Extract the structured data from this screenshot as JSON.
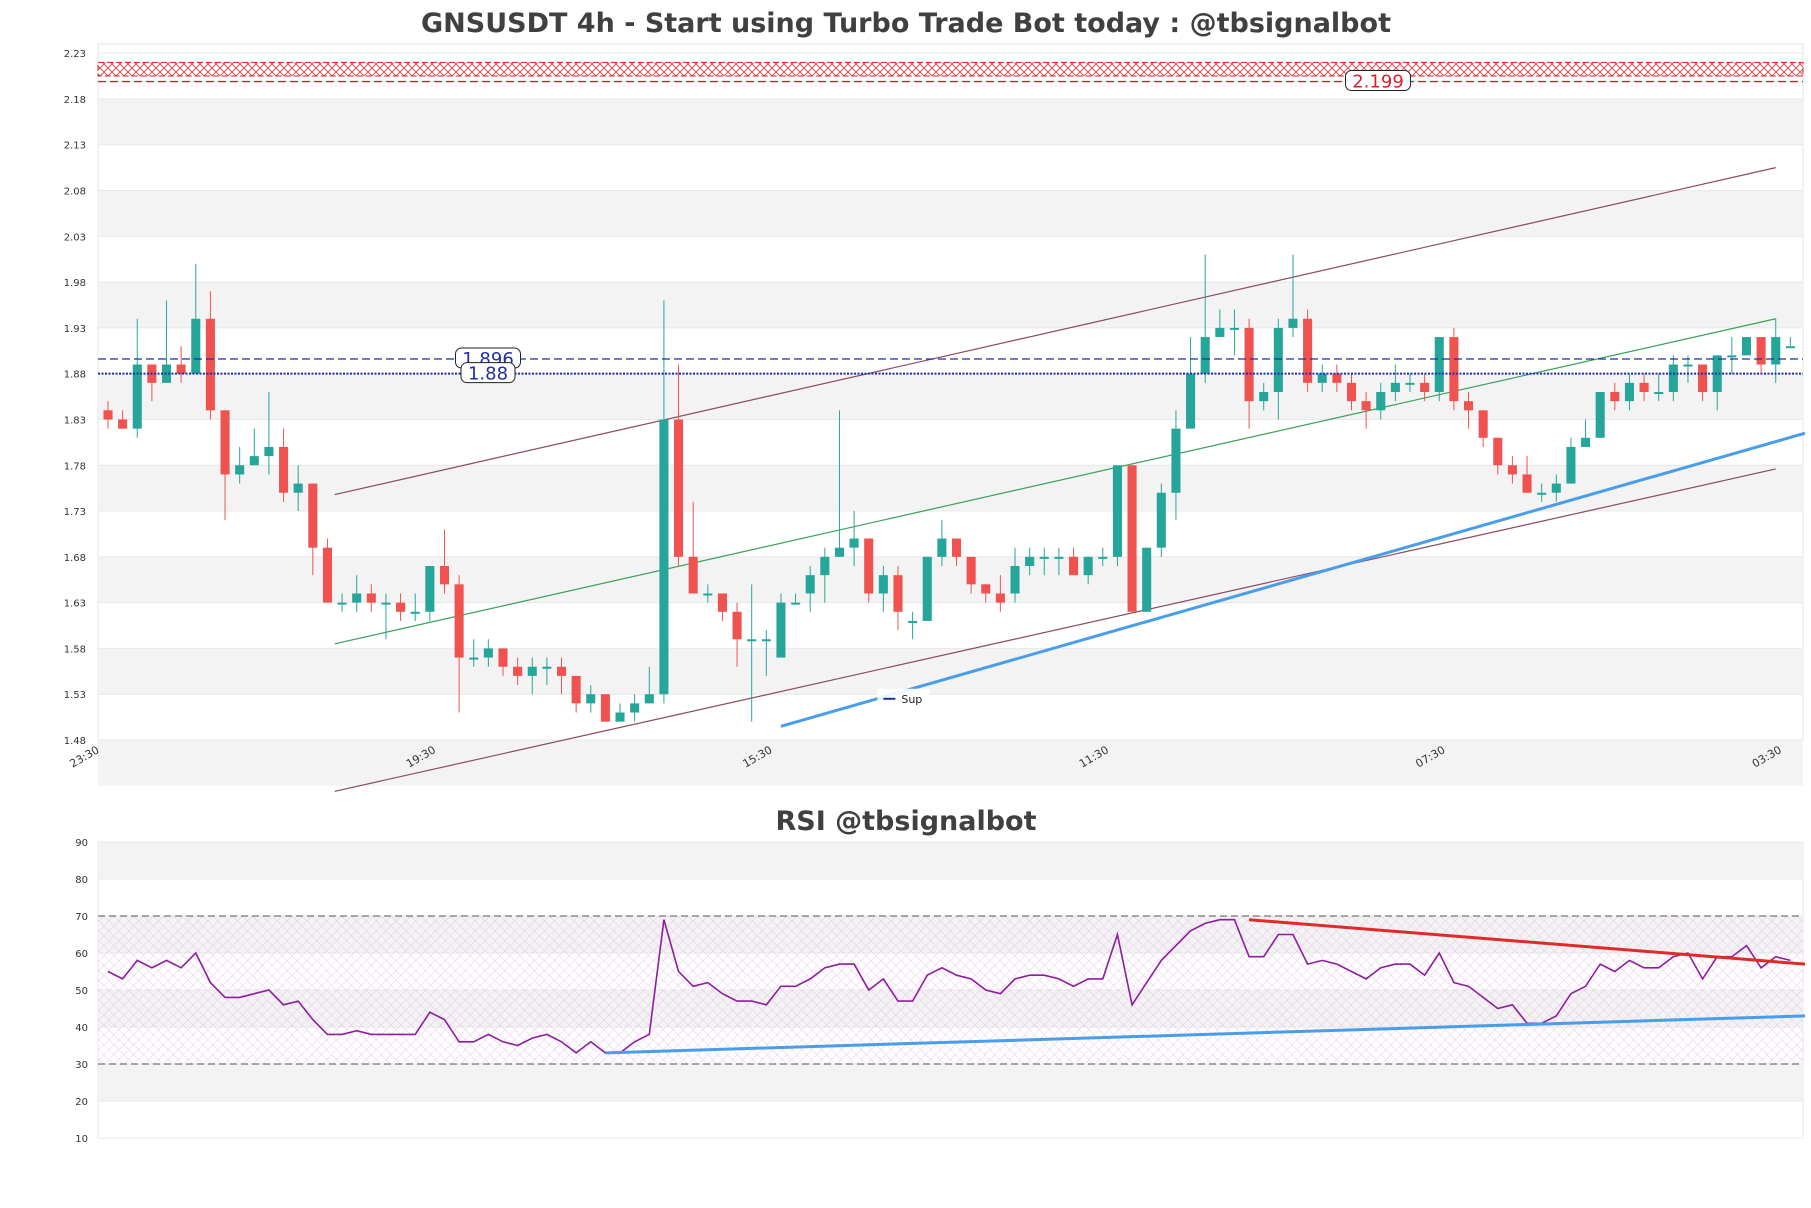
{
  "chart_data": [
    {
      "type": "candlestick",
      "title": "GNSUSDT 4h - Start using Turbo Trade Bot today : @tbsignalbot",
      "ylim": [
        1.48,
        2.24
      ],
      "y_ticks": [
        "2.23",
        "2.18",
        "2.13",
        "2.08",
        "2.03",
        "1.98",
        "1.93",
        "1.88",
        "1.83",
        "1.78",
        "1.73",
        "1.68",
        "1.63",
        "1.58",
        "1.53",
        "1.48"
      ],
      "x_tick_labels": [
        "23:30",
        "19:30",
        "15:30",
        "11:30",
        "07:30",
        "03:30"
      ],
      "x_tick_index": [
        0,
        23,
        46,
        69,
        92,
        115
      ],
      "candles": [
        [
          1.84,
          1.83,
          1.85,
          1.82
        ],
        [
          1.83,
          1.82,
          1.84,
          1.82
        ],
        [
          1.82,
          1.89,
          1.94,
          1.81
        ],
        [
          1.89,
          1.87,
          1.89,
          1.85
        ],
        [
          1.87,
          1.89,
          1.96,
          1.87
        ],
        [
          1.89,
          1.88,
          1.91,
          1.87
        ],
        [
          1.88,
          1.94,
          2.0,
          1.88
        ],
        [
          1.94,
          1.84,
          1.97,
          1.83
        ],
        [
          1.84,
          1.77,
          1.84,
          1.72
        ],
        [
          1.77,
          1.78,
          1.8,
          1.76
        ],
        [
          1.78,
          1.79,
          1.82,
          1.78
        ],
        [
          1.79,
          1.8,
          1.86,
          1.77
        ],
        [
          1.8,
          1.75,
          1.82,
          1.74
        ],
        [
          1.75,
          1.76,
          1.78,
          1.73
        ],
        [
          1.76,
          1.69,
          1.76,
          1.66
        ],
        [
          1.69,
          1.63,
          1.7,
          1.63
        ],
        [
          1.63,
          1.63,
          1.64,
          1.62
        ],
        [
          1.63,
          1.64,
          1.66,
          1.62
        ],
        [
          1.64,
          1.63,
          1.65,
          1.62
        ],
        [
          1.63,
          1.63,
          1.64,
          1.59
        ],
        [
          1.63,
          1.62,
          1.64,
          1.61
        ],
        [
          1.62,
          1.62,
          1.64,
          1.61
        ],
        [
          1.62,
          1.67,
          1.67,
          1.61
        ],
        [
          1.67,
          1.65,
          1.71,
          1.64
        ],
        [
          1.65,
          1.57,
          1.66,
          1.51
        ],
        [
          1.57,
          1.57,
          1.59,
          1.56
        ],
        [
          1.57,
          1.58,
          1.59,
          1.56
        ],
        [
          1.58,
          1.56,
          1.58,
          1.55
        ],
        [
          1.56,
          1.55,
          1.57,
          1.54
        ],
        [
          1.55,
          1.56,
          1.57,
          1.53
        ],
        [
          1.56,
          1.56,
          1.57,
          1.54
        ],
        [
          1.56,
          1.55,
          1.57,
          1.53
        ],
        [
          1.55,
          1.52,
          1.55,
          1.51
        ],
        [
          1.52,
          1.53,
          1.54,
          1.51
        ],
        [
          1.53,
          1.5,
          1.53,
          1.5
        ],
        [
          1.5,
          1.51,
          1.52,
          1.5
        ],
        [
          1.51,
          1.52,
          1.53,
          1.5
        ],
        [
          1.52,
          1.53,
          1.56,
          1.52
        ],
        [
          1.53,
          1.83,
          1.96,
          1.52
        ],
        [
          1.83,
          1.68,
          1.89,
          1.67
        ],
        [
          1.68,
          1.64,
          1.74,
          1.64
        ],
        [
          1.64,
          1.64,
          1.65,
          1.63
        ],
        [
          1.64,
          1.62,
          1.64,
          1.61
        ],
        [
          1.62,
          1.59,
          1.63,
          1.56
        ],
        [
          1.59,
          1.59,
          1.65,
          1.5
        ],
        [
          1.59,
          1.59,
          1.6,
          1.55
        ],
        [
          1.57,
          1.63,
          1.64,
          1.57
        ],
        [
          1.63,
          1.63,
          1.64,
          1.63
        ],
        [
          1.64,
          1.66,
          1.67,
          1.62
        ],
        [
          1.66,
          1.68,
          1.69,
          1.63
        ],
        [
          1.68,
          1.69,
          1.84,
          1.68
        ],
        [
          1.69,
          1.7,
          1.73,
          1.67
        ],
        [
          1.7,
          1.64,
          1.7,
          1.63
        ],
        [
          1.64,
          1.66,
          1.67,
          1.62
        ],
        [
          1.66,
          1.62,
          1.67,
          1.6
        ],
        [
          1.61,
          1.61,
          1.62,
          1.59
        ],
        [
          1.61,
          1.68,
          1.68,
          1.61
        ],
        [
          1.68,
          1.7,
          1.72,
          1.67
        ],
        [
          1.7,
          1.68,
          1.7,
          1.67
        ],
        [
          1.68,
          1.65,
          1.68,
          1.64
        ],
        [
          1.65,
          1.64,
          1.65,
          1.63
        ],
        [
          1.64,
          1.63,
          1.66,
          1.62
        ],
        [
          1.64,
          1.67,
          1.69,
          1.63
        ],
        [
          1.67,
          1.68,
          1.69,
          1.66
        ],
        [
          1.68,
          1.68,
          1.69,
          1.66
        ],
        [
          1.68,
          1.68,
          1.69,
          1.66
        ],
        [
          1.68,
          1.66,
          1.69,
          1.66
        ],
        [
          1.66,
          1.68,
          1.68,
          1.65
        ],
        [
          1.68,
          1.68,
          1.69,
          1.67
        ],
        [
          1.68,
          1.78,
          1.78,
          1.67
        ],
        [
          1.78,
          1.62,
          1.78,
          1.62
        ],
        [
          1.62,
          1.69,
          1.69,
          1.62
        ],
        [
          1.69,
          1.75,
          1.76,
          1.68
        ],
        [
          1.75,
          1.82,
          1.84,
          1.72
        ],
        [
          1.82,
          1.88,
          1.92,
          1.82
        ],
        [
          1.88,
          1.92,
          2.01,
          1.87
        ],
        [
          1.92,
          1.93,
          1.95,
          1.92
        ],
        [
          1.93,
          1.93,
          1.95,
          1.9
        ],
        [
          1.93,
          1.85,
          1.94,
          1.82
        ],
        [
          1.85,
          1.86,
          1.87,
          1.84
        ],
        [
          1.86,
          1.93,
          1.94,
          1.83
        ],
        [
          1.93,
          1.94,
          2.01,
          1.92
        ],
        [
          1.94,
          1.87,
          1.95,
          1.86
        ],
        [
          1.87,
          1.88,
          1.89,
          1.86
        ],
        [
          1.88,
          1.87,
          1.89,
          1.86
        ],
        [
          1.87,
          1.85,
          1.88,
          1.84
        ],
        [
          1.85,
          1.84,
          1.86,
          1.82
        ],
        [
          1.84,
          1.86,
          1.87,
          1.83
        ],
        [
          1.86,
          1.87,
          1.89,
          1.85
        ],
        [
          1.87,
          1.87,
          1.88,
          1.86
        ],
        [
          1.87,
          1.86,
          1.88,
          1.85
        ],
        [
          1.86,
          1.92,
          1.92,
          1.85
        ],
        [
          1.92,
          1.85,
          1.93,
          1.84
        ],
        [
          1.85,
          1.84,
          1.86,
          1.82
        ],
        [
          1.84,
          1.81,
          1.84,
          1.8
        ],
        [
          1.81,
          1.78,
          1.81,
          1.77
        ],
        [
          1.78,
          1.77,
          1.79,
          1.76
        ],
        [
          1.77,
          1.75,
          1.79,
          1.75
        ],
        [
          1.75,
          1.75,
          1.76,
          1.74
        ],
        [
          1.75,
          1.76,
          1.77,
          1.74
        ],
        [
          1.76,
          1.8,
          1.81,
          1.76
        ],
        [
          1.8,
          1.81,
          1.83,
          1.8
        ],
        [
          1.81,
          1.86,
          1.86,
          1.81
        ],
        [
          1.86,
          1.85,
          1.87,
          1.84
        ],
        [
          1.85,
          1.87,
          1.88,
          1.84
        ],
        [
          1.87,
          1.86,
          1.88,
          1.85
        ],
        [
          1.86,
          1.86,
          1.88,
          1.85
        ],
        [
          1.86,
          1.89,
          1.9,
          1.85
        ],
        [
          1.89,
          1.89,
          1.9,
          1.87
        ],
        [
          1.89,
          1.86,
          1.89,
          1.85
        ],
        [
          1.86,
          1.9,
          1.9,
          1.84
        ],
        [
          1.9,
          1.9,
          1.92,
          1.88
        ],
        [
          1.9,
          1.92,
          1.92,
          1.9
        ],
        [
          1.92,
          1.89,
          1.92,
          1.88
        ],
        [
          1.89,
          1.92,
          1.94,
          1.87
        ],
        [
          1.91,
          1.91,
          1.92,
          1.91
        ]
      ],
      "levels": [
        {
          "label": "2.199",
          "value": 2.199,
          "color": "#dd1f2b"
        },
        {
          "label": "1.896",
          "value": 1.896,
          "color": "#1f2fa8"
        },
        {
          "label": "1.88",
          "value": 1.88,
          "color": "#1f2fa8"
        }
      ],
      "resistance_zone": [
        2.205,
        2.22
      ],
      "channel_lines": [
        {
          "color": "#8b4a5f",
          "points": [
            [
              15.5,
              1.748
            ],
            [
              114,
              2.105
            ]
          ]
        },
        {
          "color": "#8b4a5f",
          "points": [
            [
              15.5,
              1.424
            ],
            [
              114,
              1.776
            ]
          ]
        },
        {
          "color": "#3aa05a",
          "points": [
            [
              15.5,
              1.585
            ],
            [
              114,
              1.94
            ]
          ]
        }
      ],
      "support_line": {
        "label": "Sup",
        "color": "#4a9de8",
        "points": [
          [
            46,
            1.495
          ],
          [
            116,
            1.815
          ]
        ]
      },
      "colors": {
        "up": "#26a69a",
        "down": "#ef5350"
      }
    },
    {
      "type": "line",
      "title": "RSI @tbsignalbot",
      "ylim": [
        10,
        90
      ],
      "y_ticks": [
        "90",
        "80",
        "70",
        "60",
        "50",
        "40",
        "30",
        "20",
        "10"
      ],
      "series": [
        {
          "color": "#8e1d9e",
          "values": [
            55,
            53,
            58,
            56,
            58,
            56,
            60,
            52,
            48,
            48,
            49,
            50,
            46,
            47,
            42,
            38,
            38,
            39,
            38,
            38,
            38,
            38,
            44,
            42,
            36,
            36,
            38,
            36,
            35,
            37,
            38,
            36,
            33,
            36,
            33,
            33,
            36,
            38,
            69,
            55,
            51,
            52,
            49,
            47,
            47,
            46,
            51,
            51,
            53,
            56,
            57,
            57,
            50,
            53,
            47,
            47,
            54,
            56,
            54,
            53,
            50,
            49,
            53,
            54,
            54,
            53,
            51,
            53,
            53,
            65,
            46,
            52,
            58,
            62,
            66,
            68,
            69,
            69,
            59,
            59,
            65,
            65,
            57,
            58,
            57,
            55,
            53,
            56,
            57,
            57,
            54,
            60,
            52,
            51,
            48,
            45,
            46,
            41,
            41,
            43,
            49,
            51,
            57,
            55,
            58,
            56,
            56,
            59,
            60,
            53,
            59,
            59,
            62,
            56,
            59,
            58
          ]
        }
      ],
      "levels": [
        70,
        30
      ],
      "trend_lines": [
        {
          "color": "#e02a2a",
          "points": [
            [
              78,
              69
            ],
            [
              116,
              57
            ]
          ]
        },
        {
          "color": "#4a9de8",
          "points": [
            [
              34,
              33
            ],
            [
              116,
              43
            ]
          ]
        }
      ]
    }
  ]
}
